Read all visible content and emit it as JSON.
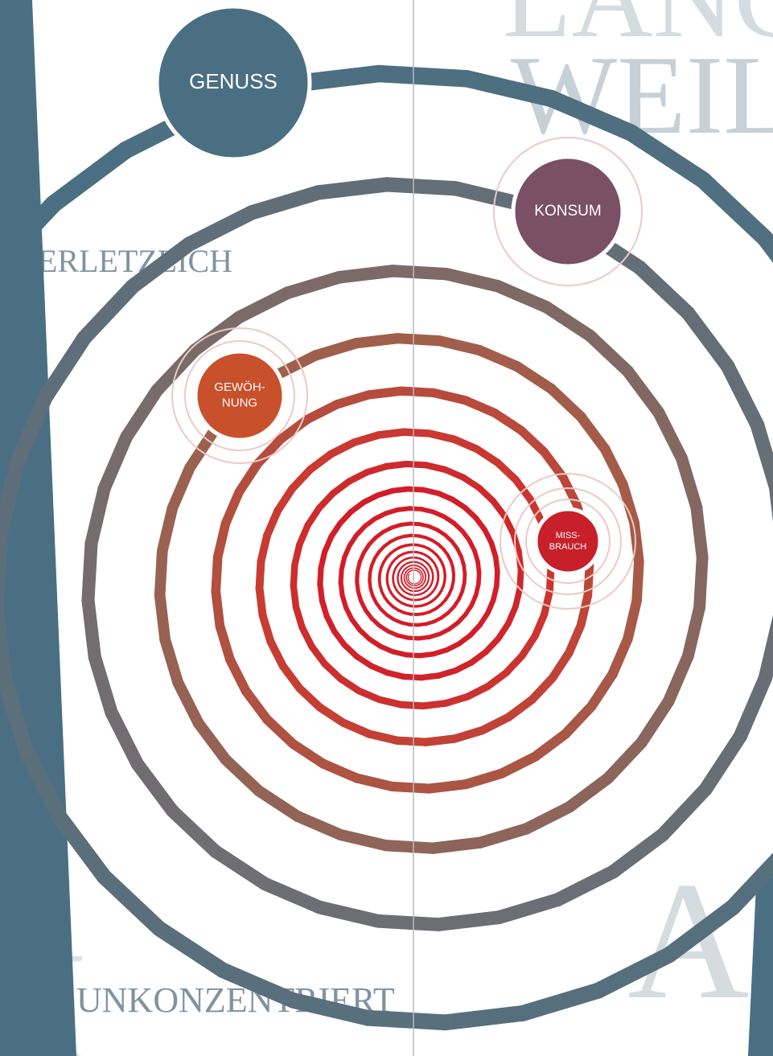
{
  "nodes": [
    {
      "lines": [
        "GENUSS"
      ]
    },
    {
      "lines": [
        "KONSUM"
      ]
    },
    {
      "lines": [
        "GEWÖH-",
        "NUNG"
      ]
    },
    {
      "lines": [
        "MISS-",
        "BRAUCH"
      ]
    }
  ],
  "background_words": [
    "LANG",
    "WEIL",
    "VERLETZLICH",
    "UNKONZENTRIERT",
    "AB",
    "K"
  ]
}
